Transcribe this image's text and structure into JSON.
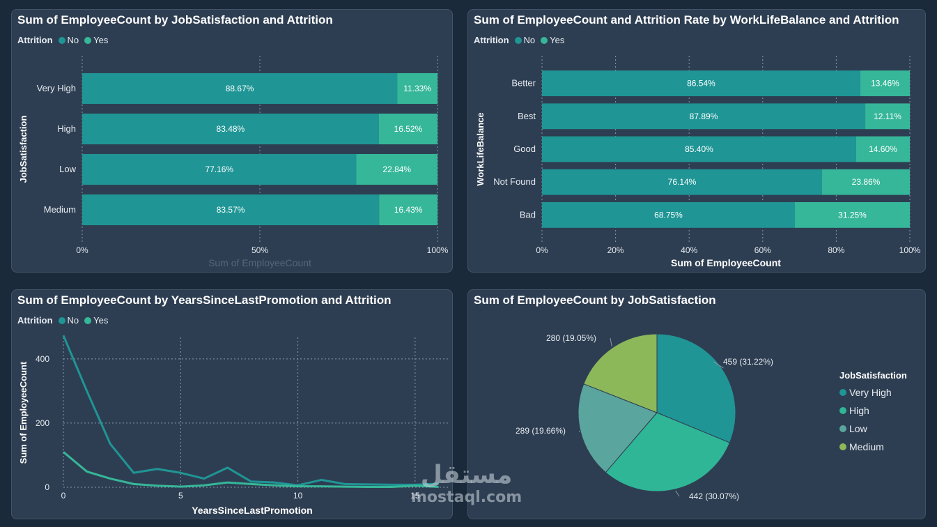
{
  "colors": {
    "no": "#1f9595",
    "yes": "#36b799",
    "very_high": "#1f9595",
    "high": "#2fb696",
    "low": "#5aa69e",
    "medium": "#8cb85a"
  },
  "legend": {
    "title": "Attrition",
    "no": "No",
    "yes": "Yes"
  },
  "chart_data": [
    {
      "type": "bar",
      "stacked": "100%",
      "orientation": "horizontal",
      "title": "Sum of EmployeeCount by JobSatisfaction and Attrition",
      "ylabel": "JobSatisfaction",
      "xlabel": "Sum of EmployeeCount",
      "categories": [
        "Very High",
        "High",
        "Low",
        "Medium"
      ],
      "series": [
        {
          "name": "No",
          "values": [
            88.67,
            83.48,
            77.16,
            83.57
          ],
          "labels": [
            "88.67%",
            "83.48%",
            "77.16%",
            "83.57%"
          ]
        },
        {
          "name": "Yes",
          "values": [
            11.33,
            16.52,
            22.84,
            16.43
          ],
          "labels": [
            "11.33%",
            "16.52%",
            "22.84%",
            "16.43%"
          ]
        }
      ],
      "xticks": [
        "0%",
        "50%",
        "100%"
      ],
      "xlim": [
        0,
        100
      ]
    },
    {
      "type": "bar",
      "stacked": "100%",
      "orientation": "horizontal",
      "title": "Sum of EmployeeCount and Attrition Rate by WorkLifeBalance and Attrition",
      "ylabel": "WorkLifeBalance",
      "xlabel": "Sum of EmployeeCount",
      "categories": [
        "Better",
        "Best",
        "Good",
        "Not Found",
        "Bad"
      ],
      "series": [
        {
          "name": "No",
          "values": [
            86.54,
            87.89,
            85.4,
            76.14,
            68.75
          ],
          "labels": [
            "86.54%",
            "87.89%",
            "85.40%",
            "76.14%",
            "68.75%"
          ]
        },
        {
          "name": "Yes",
          "values": [
            13.46,
            12.11,
            14.6,
            23.86,
            31.25
          ],
          "labels": [
            "13.46%",
            "12.11%",
            "14.60%",
            "23.86%",
            "31.25%"
          ]
        }
      ],
      "xticks": [
        "0%",
        "20%",
        "40%",
        "60%",
        "80%",
        "100%"
      ],
      "xlim": [
        0,
        100
      ]
    },
    {
      "type": "line",
      "title": "Sum of EmployeeCount by YearsSinceLastPromotion and Attrition",
      "xlabel": "YearsSinceLastPromotion",
      "ylabel": "Sum of EmployeeCount",
      "x": [
        0,
        1,
        2,
        3,
        4,
        5,
        6,
        7,
        8,
        9,
        10,
        11,
        12,
        13,
        14,
        15,
        16
      ],
      "series": [
        {
          "name": "No",
          "values": [
            473,
            300,
            135,
            45,
            57,
            45,
            27,
            61,
            18,
            15,
            6,
            23,
            10,
            9,
            8,
            8,
            11
          ]
        },
        {
          "name": "Yes",
          "values": [
            110,
            49,
            27,
            10,
            5,
            2,
            6,
            15,
            10,
            6,
            3,
            3,
            2,
            1,
            1,
            5,
            1
          ]
        }
      ],
      "xticks": [
        "0",
        "5",
        "10",
        "15"
      ],
      "yticks": [
        "0",
        "200",
        "400"
      ],
      "xlim": [
        0,
        16.4
      ],
      "ylim": [
        0,
        480
      ]
    },
    {
      "type": "pie",
      "title": "Sum of EmployeeCount by JobSatisfaction",
      "legend_title": "JobSatisfaction",
      "categories": [
        "Very High",
        "High",
        "Low",
        "Medium"
      ],
      "values": [
        459,
        442,
        289,
        280
      ],
      "labels": [
        "459 (31.22%)",
        "442 (30.07%)",
        "289 (19.66%)",
        "280 (19.05%)"
      ]
    }
  ],
  "watermark": {
    "line1": "مستقل",
    "line2": "mostaql.com"
  }
}
